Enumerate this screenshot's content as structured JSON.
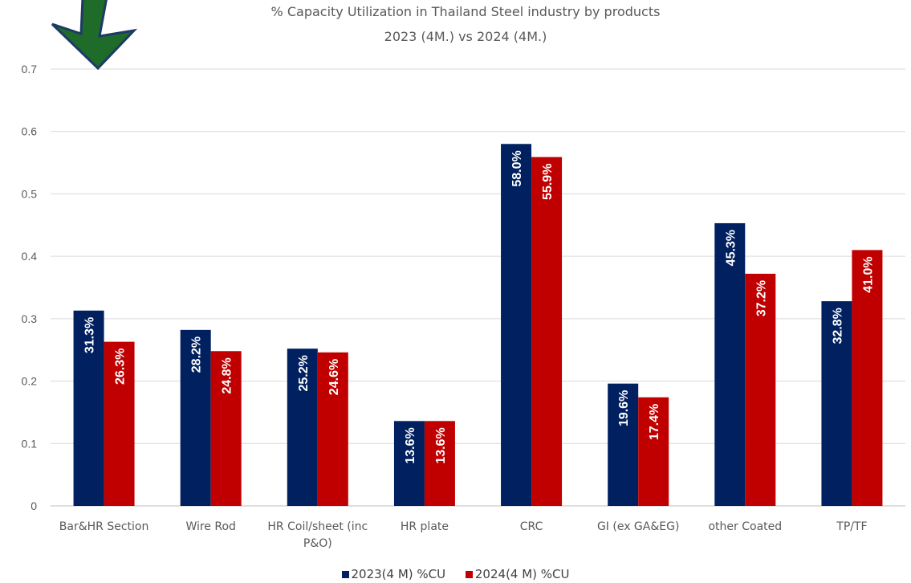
{
  "chart_data": {
    "type": "bar",
    "title": "% Capacity Utilization in Thailand Steel industry by products",
    "subtitle": "2023 (4M.) vs 2024 (4M.)",
    "categories": [
      [
        "Bar&HR Section"
      ],
      [
        "Wire Rod"
      ],
      [
        "HR Coil/sheet (inc",
        "P&O)"
      ],
      [
        "HR plate"
      ],
      [
        "CRC"
      ],
      [
        "GI (ex GA&EG)"
      ],
      [
        "other Coated"
      ],
      [
        "TP/TF"
      ]
    ],
    "series": [
      {
        "name": "2023(4 M) %CU",
        "color": "#002060",
        "values": [
          0.313,
          0.282,
          0.252,
          0.136,
          0.58,
          0.196,
          0.453,
          0.328
        ],
        "labels": [
          "31.3%",
          "28.2%",
          "25.2%",
          "13.6%",
          "58.0%",
          "19.6%",
          "45.3%",
          "32.8%"
        ]
      },
      {
        "name": "2024(4 M) %CU",
        "color": "#C00000",
        "values": [
          0.263,
          0.248,
          0.246,
          0.136,
          0.559,
          0.174,
          0.372,
          0.41
        ],
        "labels": [
          "26.3%",
          "24.8%",
          "24.6%",
          "13.6%",
          "55.9%",
          "17.4%",
          "37.2%",
          "41.0%"
        ]
      }
    ],
    "ylim": [
      0,
      0.7
    ],
    "yticks": [
      0,
      0.1,
      0.2,
      0.3,
      0.4,
      0.5,
      0.6,
      0.7
    ],
    "ytick_labels": [
      "0",
      "0.1",
      "0.2",
      "0.3",
      "0.4",
      "0.5",
      "0.6",
      "0.7"
    ],
    "grid": true,
    "legend": "bottom-center"
  },
  "decoration": {
    "arrow_icon": "down-arrow-icon",
    "arrow_color": "#1E6B2A"
  }
}
